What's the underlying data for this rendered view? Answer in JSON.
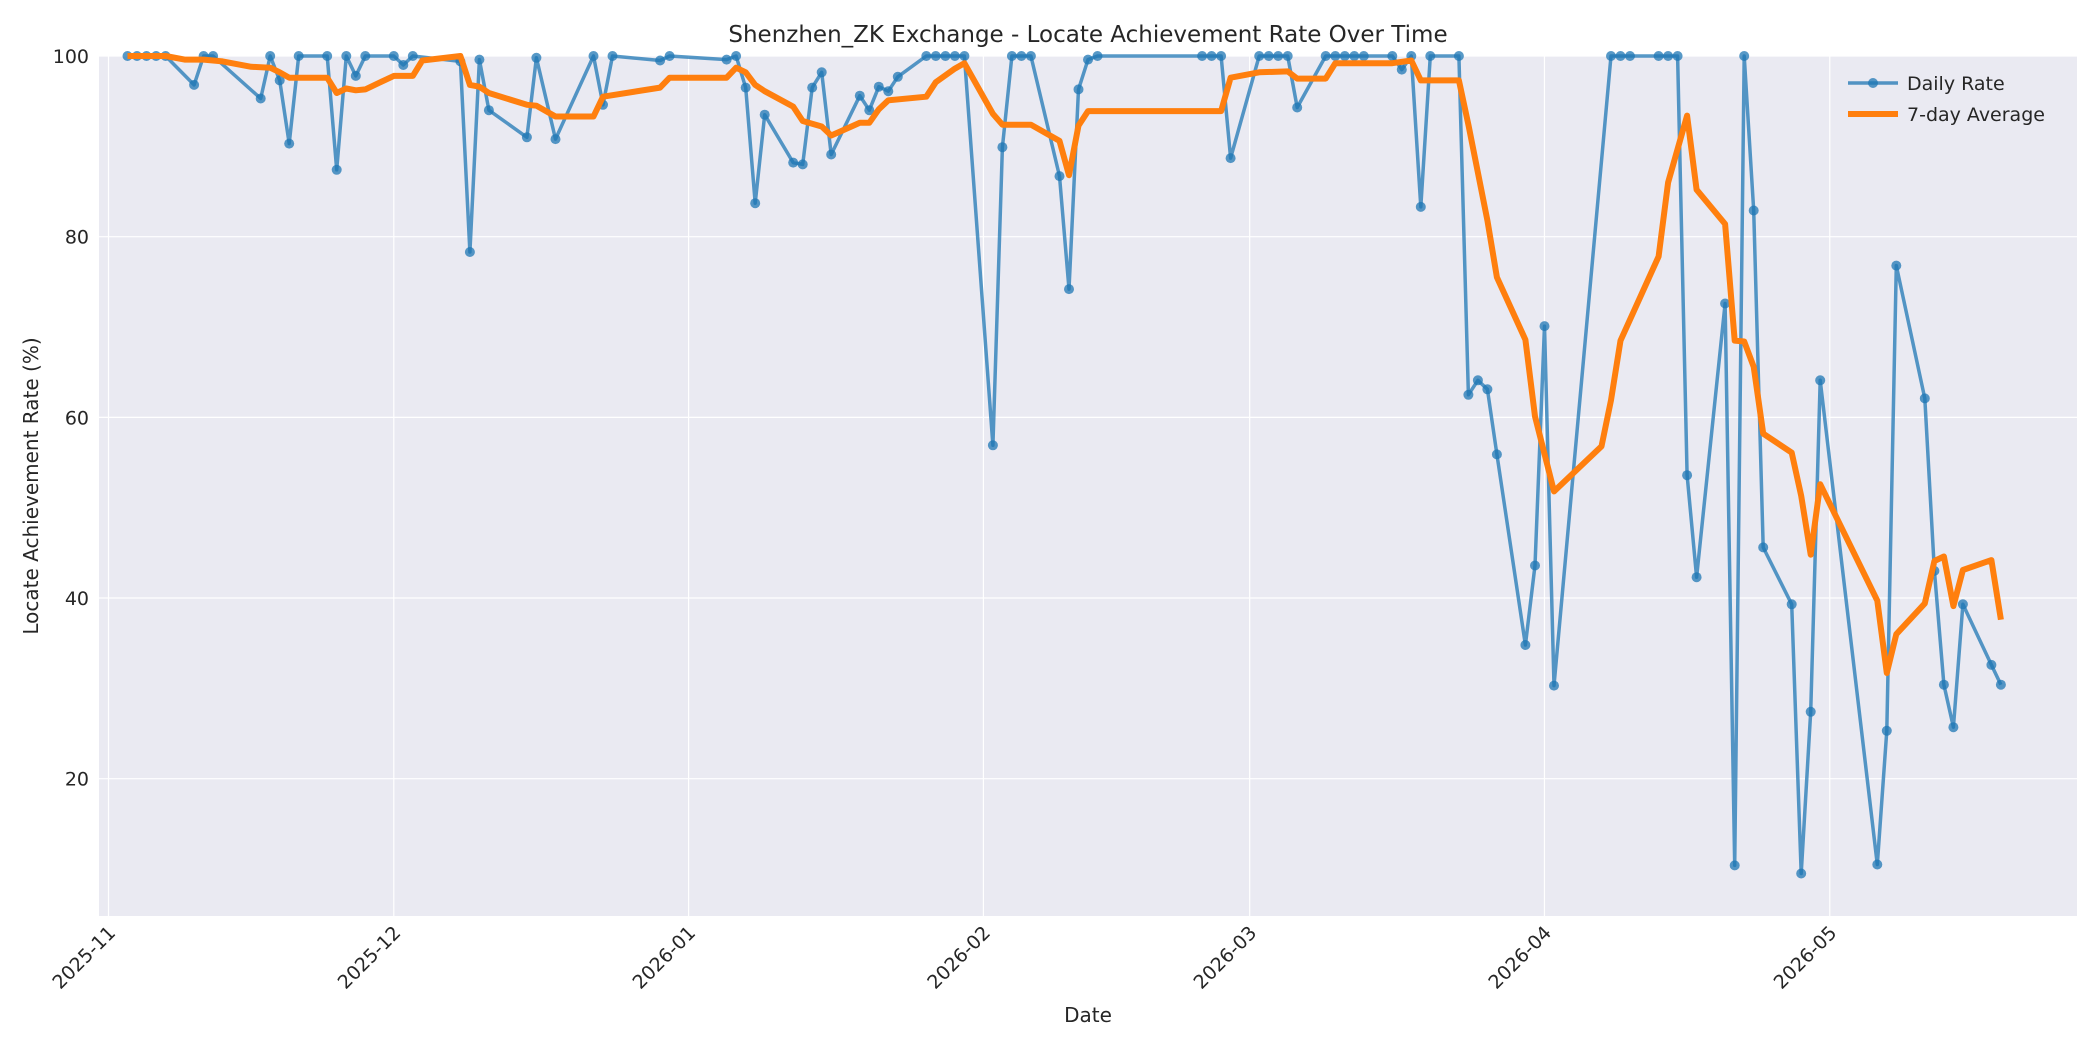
{
  "chart_data": {
    "type": "line",
    "title": "Shenzhen_ZK Exchange - Locate Achievement Rate Over Time",
    "xlabel": "Date",
    "ylabel": "Locate Achievement Rate (%)",
    "xlim": [
      "2025-10-31",
      "2026-05-27"
    ],
    "ylim": [
      4.8,
      100
    ],
    "x_ticks": [
      "2025-11",
      "2025-12",
      "2026-01",
      "2026-02",
      "2026-03",
      "2026-04",
      "2026-05"
    ],
    "y_ticks": [
      20,
      40,
      60,
      80,
      100
    ],
    "grid": true,
    "legend_position": "top-right",
    "colors": {
      "daily": "#1f77b4",
      "average": "#ff7f0e",
      "plot_bg": "#eaeaf2",
      "grid": "#ffffff"
    },
    "series": [
      {
        "name": "Daily Rate",
        "style": "line-markers",
        "points": [
          [
            "2025-11-03",
            100
          ],
          [
            "2025-11-04",
            100
          ],
          [
            "2025-11-05",
            100
          ],
          [
            "2025-11-06",
            100
          ],
          [
            "2025-11-07",
            100
          ],
          [
            "2025-11-10",
            96.8
          ],
          [
            "2025-11-11",
            100
          ],
          [
            "2025-11-12",
            100
          ],
          [
            "2025-11-17",
            95.3
          ],
          [
            "2025-11-18",
            100
          ],
          [
            "2025-11-19",
            97.3
          ],
          [
            "2025-11-20",
            90.3
          ],
          [
            "2025-11-21",
            100
          ],
          [
            "2025-11-24",
            100
          ],
          [
            "2025-11-25",
            87.4
          ],
          [
            "2025-11-26",
            100
          ],
          [
            "2025-11-27",
            97.8
          ],
          [
            "2025-11-28",
            100
          ],
          [
            "2025-12-01",
            100
          ],
          [
            "2025-12-02",
            99
          ],
          [
            "2025-12-03",
            100
          ],
          [
            "2025-12-08",
            99.4
          ],
          [
            "2025-12-09",
            78.3
          ],
          [
            "2025-12-10",
            99.6
          ],
          [
            "2025-12-11",
            94
          ],
          [
            "2025-12-15",
            91
          ],
          [
            "2025-12-16",
            99.8
          ],
          [
            "2025-12-18",
            90.8
          ],
          [
            "2025-12-22",
            100
          ],
          [
            "2025-12-23",
            94.6
          ],
          [
            "2025-12-24",
            100
          ],
          [
            "2025-12-29",
            99.5
          ],
          [
            "2025-12-30",
            100
          ],
          [
            "2026-01-05",
            99.6
          ],
          [
            "2026-01-06",
            100
          ],
          [
            "2026-01-07",
            96.5
          ],
          [
            "2026-01-08",
            83.7
          ],
          [
            "2026-01-09",
            93.5
          ],
          [
            "2026-01-12",
            88.2
          ],
          [
            "2026-01-13",
            88
          ],
          [
            "2026-01-14",
            96.5
          ],
          [
            "2026-01-15",
            98.2
          ],
          [
            "2026-01-16",
            89.1
          ],
          [
            "2026-01-19",
            95.6
          ],
          [
            "2026-01-20",
            94
          ],
          [
            "2026-01-21",
            96.6
          ],
          [
            "2026-01-22",
            96.1
          ],
          [
            "2026-01-23",
            97.7
          ],
          [
            "2026-01-26",
            100
          ],
          [
            "2026-01-27",
            100
          ],
          [
            "2026-01-28",
            100
          ],
          [
            "2026-01-29",
            100
          ],
          [
            "2026-01-30",
            100
          ],
          [
            "2026-02-02",
            56.9
          ],
          [
            "2026-02-03",
            89.9
          ],
          [
            "2026-02-04",
            100
          ],
          [
            "2026-02-05",
            100
          ],
          [
            "2026-02-06",
            100
          ],
          [
            "2026-02-09",
            86.7
          ],
          [
            "2026-02-10",
            74.2
          ],
          [
            "2026-02-11",
            96.3
          ],
          [
            "2026-02-12",
            99.6
          ],
          [
            "2026-02-13",
            100
          ],
          [
            "2026-02-24",
            100
          ],
          [
            "2026-02-25",
            100
          ],
          [
            "2026-02-26",
            100
          ],
          [
            "2026-02-27",
            88.7
          ],
          [
            "2026-03-02",
            100
          ],
          [
            "2026-03-03",
            100
          ],
          [
            "2026-03-04",
            100
          ],
          [
            "2026-03-05",
            100
          ],
          [
            "2026-03-06",
            94.3
          ],
          [
            "2026-03-09",
            100
          ],
          [
            "2026-03-10",
            100
          ],
          [
            "2026-03-11",
            100
          ],
          [
            "2026-03-12",
            100
          ],
          [
            "2026-03-13",
            100
          ],
          [
            "2026-03-16",
            100
          ],
          [
            "2026-03-17",
            98.5
          ],
          [
            "2026-03-18",
            100
          ],
          [
            "2026-03-19",
            83.3
          ],
          [
            "2026-03-20",
            100
          ],
          [
            "2026-03-23",
            100
          ],
          [
            "2026-03-24",
            62.5
          ],
          [
            "2026-03-25",
            64.1
          ],
          [
            "2026-03-26",
            63.1
          ],
          [
            "2026-03-27",
            55.9
          ],
          [
            "2026-03-30",
            34.8
          ],
          [
            "2026-03-31",
            43.6
          ],
          [
            "2026-04-01",
            70.1
          ],
          [
            "2026-04-02",
            30.3
          ],
          [
            "2026-04-08",
            100
          ],
          [
            "2026-04-09",
            100
          ],
          [
            "2026-04-10",
            100
          ],
          [
            "2026-04-13",
            100
          ],
          [
            "2026-04-14",
            100
          ],
          [
            "2026-04-15",
            100
          ],
          [
            "2026-04-16",
            53.6
          ],
          [
            "2026-04-17",
            42.3
          ],
          [
            "2026-04-20",
            72.6
          ],
          [
            "2026-04-21",
            10.4
          ],
          [
            "2026-04-22",
            100
          ],
          [
            "2026-04-23",
            82.9
          ],
          [
            "2026-04-24",
            45.6
          ],
          [
            "2026-04-27",
            39.3
          ],
          [
            "2026-04-28",
            9.5
          ],
          [
            "2026-04-29",
            27.4
          ],
          [
            "2026-04-30",
            64.1
          ],
          [
            "2026-05-06",
            10.5
          ],
          [
            "2026-05-07",
            25.3
          ],
          [
            "2026-05-08",
            76.8
          ],
          [
            "2026-05-11",
            62.1
          ],
          [
            "2026-05-12",
            43
          ],
          [
            "2026-05-13",
            30.4
          ],
          [
            "2026-05-14",
            25.7
          ],
          [
            "2026-05-15",
            39.3
          ],
          [
            "2026-05-18",
            32.6
          ],
          [
            "2026-05-19",
            30.4
          ]
        ]
      },
      {
        "name": "7-day Average",
        "style": "line",
        "points": [
          [
            "2025-11-03",
            100
          ],
          [
            "2025-11-07",
            100
          ],
          [
            "2025-11-09",
            99.6
          ],
          [
            "2025-11-11",
            99.6
          ],
          [
            "2025-11-13",
            99.4
          ],
          [
            "2025-11-16",
            98.8
          ],
          [
            "2025-11-18",
            98.7
          ],
          [
            "2025-11-19",
            98.2
          ],
          [
            "2025-11-20",
            97.6
          ],
          [
            "2025-11-24",
            97.6
          ],
          [
            "2025-11-25",
            95.9
          ],
          [
            "2025-11-26",
            96.4
          ],
          [
            "2025-11-27",
            96.2
          ],
          [
            "2025-11-28",
            96.3
          ],
          [
            "2025-12-01",
            97.8
          ],
          [
            "2025-12-03",
            97.8
          ],
          [
            "2025-12-04",
            99.5
          ],
          [
            "2025-12-08",
            100
          ],
          [
            "2025-12-09",
            96.8
          ],
          [
            "2025-12-10",
            96.6
          ],
          [
            "2025-12-11",
            95.9
          ],
          [
            "2025-12-15",
            94.6
          ],
          [
            "2025-12-16",
            94.5
          ],
          [
            "2025-12-18",
            93.3
          ],
          [
            "2025-12-22",
            93.3
          ],
          [
            "2025-12-23",
            95.5
          ],
          [
            "2025-12-29",
            96.5
          ],
          [
            "2025-12-30",
            97.6
          ],
          [
            "2026-01-05",
            97.6
          ],
          [
            "2026-01-06",
            98.7
          ],
          [
            "2026-01-07",
            98.2
          ],
          [
            "2026-01-08",
            96.8
          ],
          [
            "2026-01-09",
            96.1
          ],
          [
            "2026-01-12",
            94.4
          ],
          [
            "2026-01-13",
            92.8
          ],
          [
            "2026-01-15",
            92.2
          ],
          [
            "2026-01-16",
            91.2
          ],
          [
            "2026-01-19",
            92.6
          ],
          [
            "2026-01-20",
            92.6
          ],
          [
            "2026-01-21",
            94.1
          ],
          [
            "2026-01-22",
            95.1
          ],
          [
            "2026-01-26",
            95.5
          ],
          [
            "2026-01-27",
            97.1
          ],
          [
            "2026-01-29",
            98.6
          ],
          [
            "2026-01-30",
            99.2
          ],
          [
            "2026-02-02",
            93.6
          ],
          [
            "2026-02-03",
            92.4
          ],
          [
            "2026-02-06",
            92.4
          ],
          [
            "2026-02-09",
            90.6
          ],
          [
            "2026-02-10",
            86.8
          ],
          [
            "2026-02-11",
            92.3
          ],
          [
            "2026-02-12",
            93.9
          ],
          [
            "2026-02-26",
            93.9
          ],
          [
            "2026-02-27",
            97.6
          ],
          [
            "2026-03-02",
            98.2
          ],
          [
            "2026-03-05",
            98.3
          ],
          [
            "2026-03-06",
            97.5
          ],
          [
            "2026-03-09",
            97.5
          ],
          [
            "2026-03-10",
            99.2
          ],
          [
            "2026-03-16",
            99.2
          ],
          [
            "2026-03-18",
            99.5
          ],
          [
            "2026-03-19",
            97.3
          ],
          [
            "2026-03-23",
            97.3
          ],
          [
            "2026-03-24",
            92.4
          ],
          [
            "2026-03-26",
            81.8
          ],
          [
            "2026-03-27",
            75.5
          ],
          [
            "2026-03-30",
            68.6
          ],
          [
            "2026-03-31",
            60.1
          ],
          [
            "2026-04-02",
            51.8
          ],
          [
            "2026-04-07",
            56.8
          ],
          [
            "2026-04-08",
            61.9
          ],
          [
            "2026-04-09",
            68.5
          ],
          [
            "2026-04-13",
            77.8
          ],
          [
            "2026-04-14",
            86
          ],
          [
            "2026-04-16",
            93.4
          ],
          [
            "2026-04-17",
            85.2
          ],
          [
            "2026-04-20",
            81.4
          ],
          [
            "2026-04-21",
            68.5
          ],
          [
            "2026-04-22",
            68.4
          ],
          [
            "2026-04-23",
            65.6
          ],
          [
            "2026-04-24",
            58.2
          ],
          [
            "2026-04-27",
            56.1
          ],
          [
            "2026-04-28",
            51.3
          ],
          [
            "2026-04-29",
            44.8
          ],
          [
            "2026-04-30",
            52.6
          ],
          [
            "2026-05-06",
            39.7
          ],
          [
            "2026-05-07",
            31.7
          ],
          [
            "2026-05-08",
            36
          ],
          [
            "2026-05-11",
            39.4
          ],
          [
            "2026-05-12",
            44.1
          ],
          [
            "2026-05-13",
            44.6
          ],
          [
            "2026-05-14",
            39.1
          ],
          [
            "2026-05-15",
            43.1
          ],
          [
            "2026-05-18",
            44.2
          ],
          [
            "2026-05-19",
            37.6
          ]
        ]
      }
    ]
  }
}
